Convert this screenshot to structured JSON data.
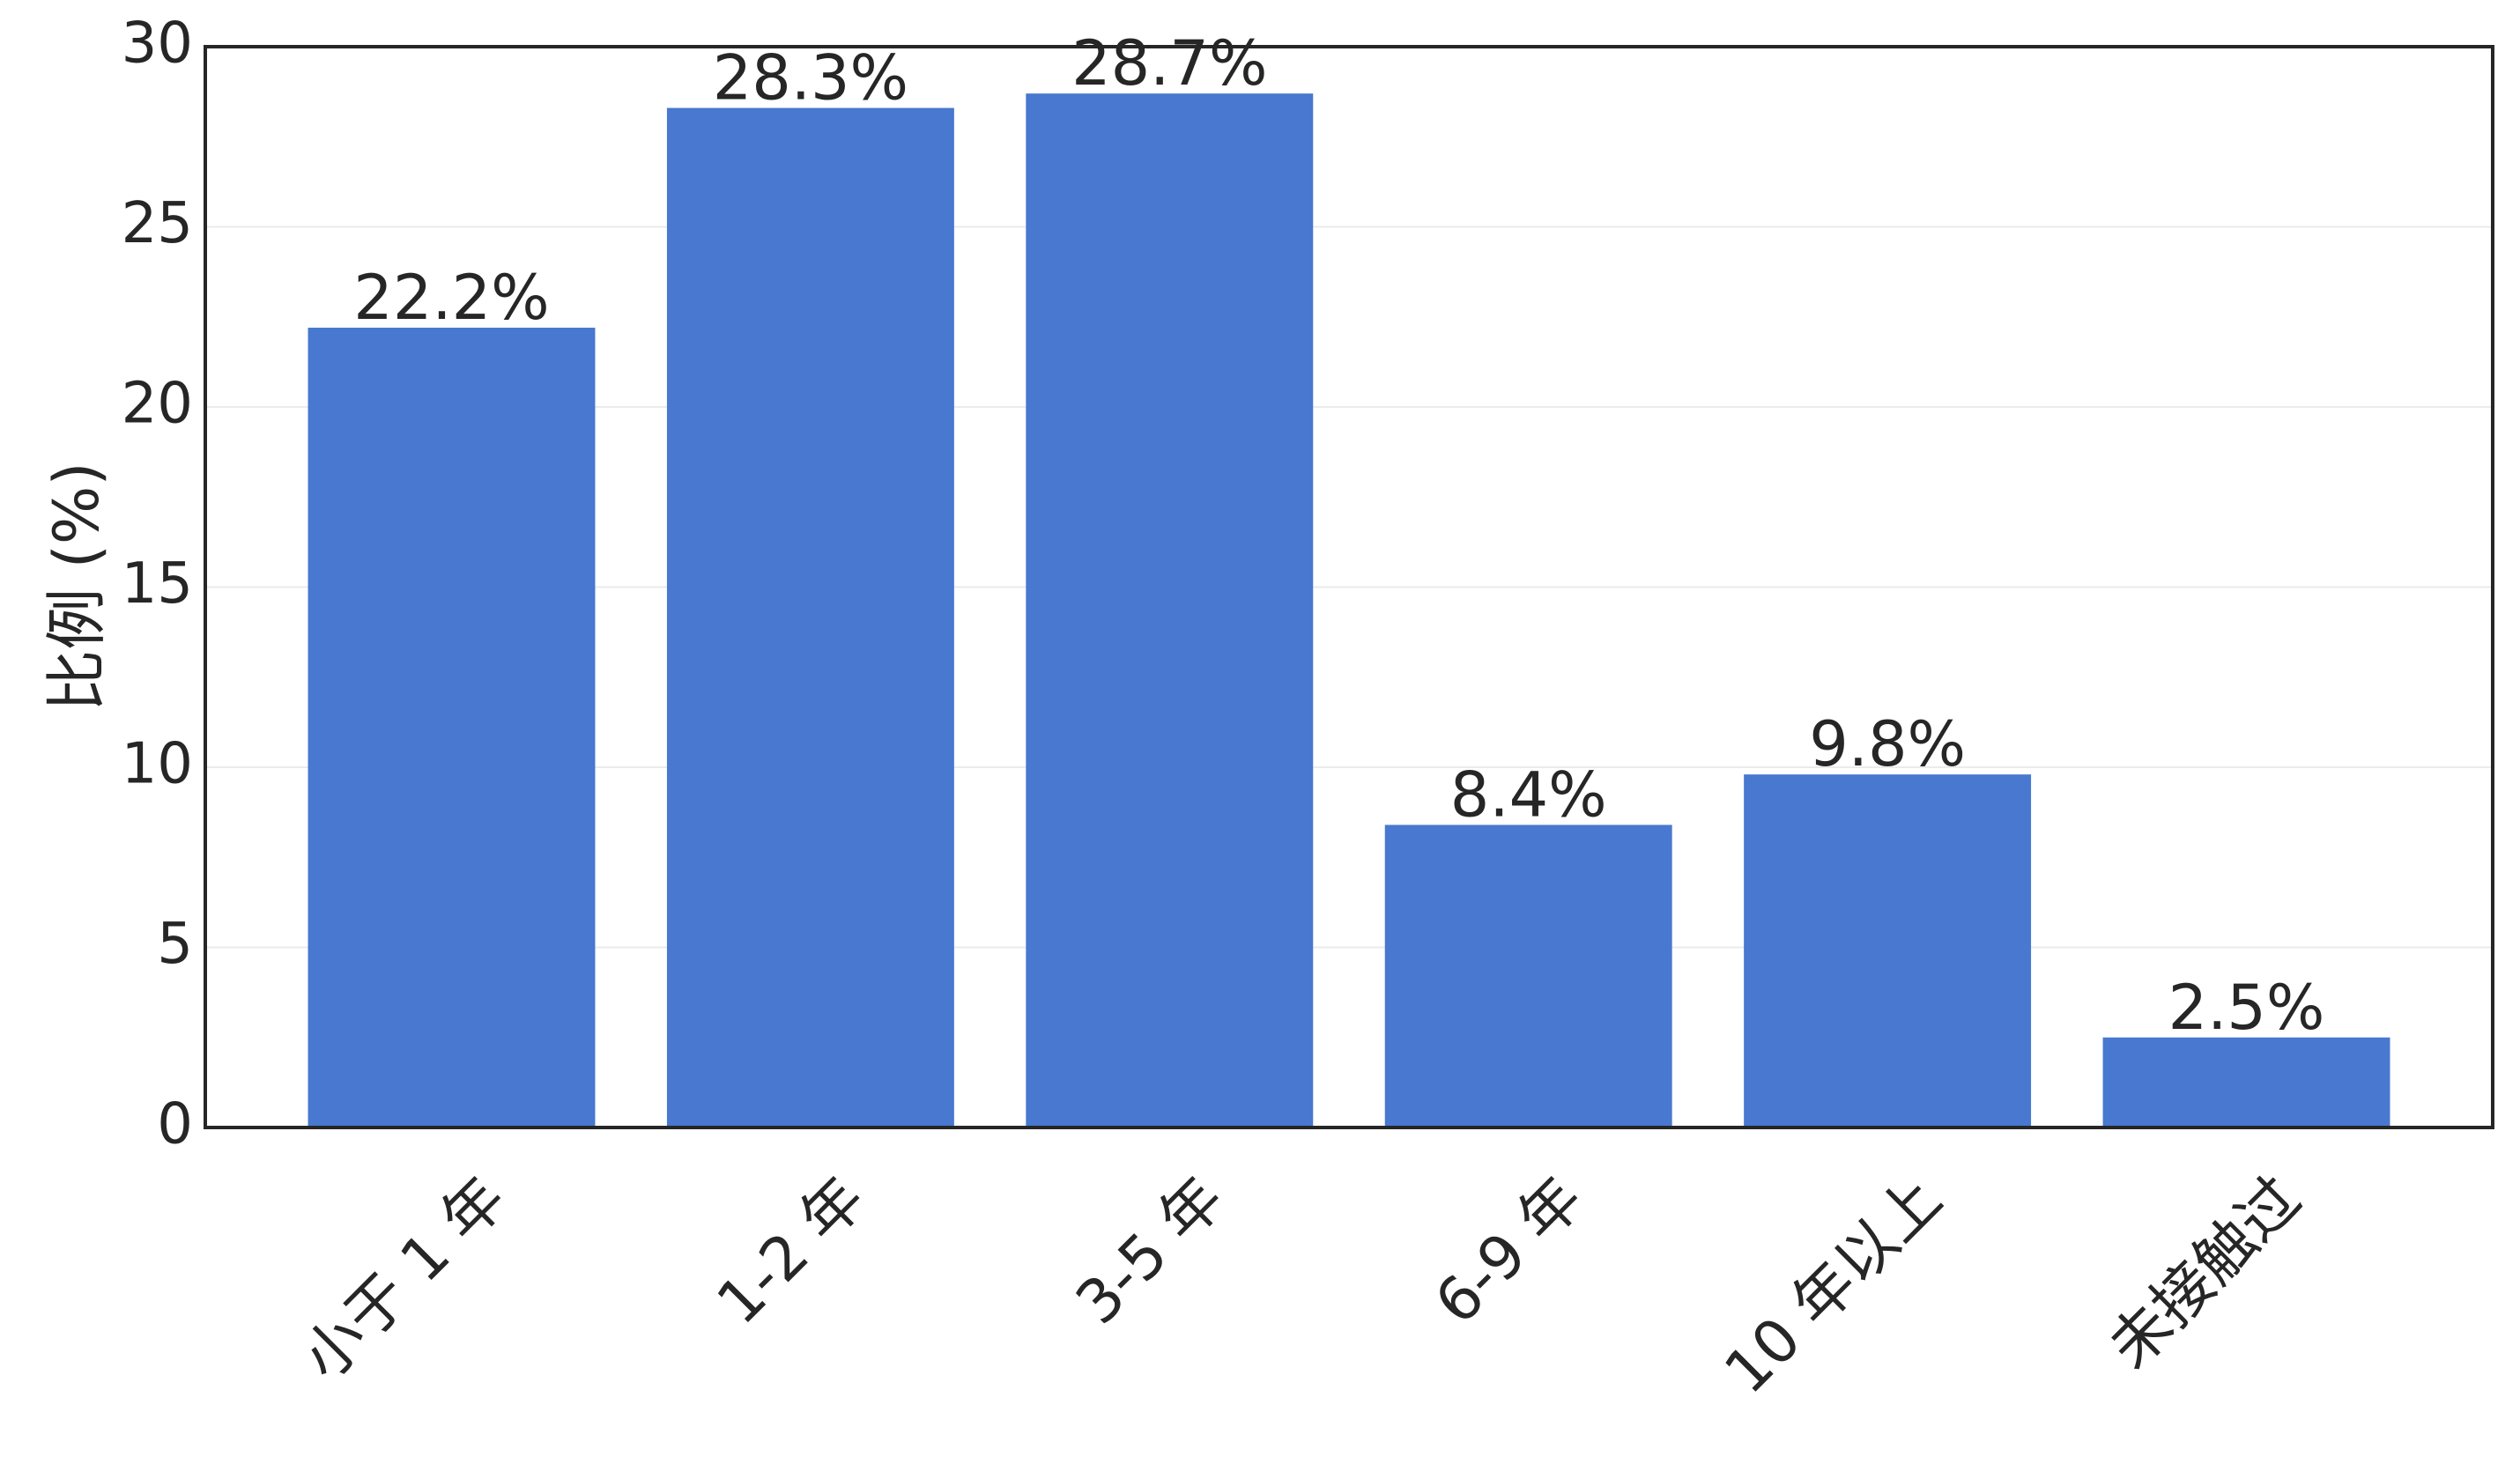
{
  "chart_data": {
    "type": "bar",
    "ylabel": "比例 (%)",
    "categories": [
      "小于 1 年",
      "1-2 年",
      "3-5 年",
      "6-9 年",
      "10 年以上",
      "未接触过"
    ],
    "values": [
      22.2,
      28.3,
      28.7,
      8.4,
      9.8,
      2.5
    ],
    "value_labels": [
      "22.2%",
      "28.3%",
      "28.7%",
      "8.4%",
      "9.8%",
      "2.5%"
    ],
    "color": "#4878cf",
    "ylim": [
      0,
      30
    ],
    "yticks": [
      0,
      5,
      10,
      15,
      20,
      25,
      30
    ],
    "grid": true
  }
}
